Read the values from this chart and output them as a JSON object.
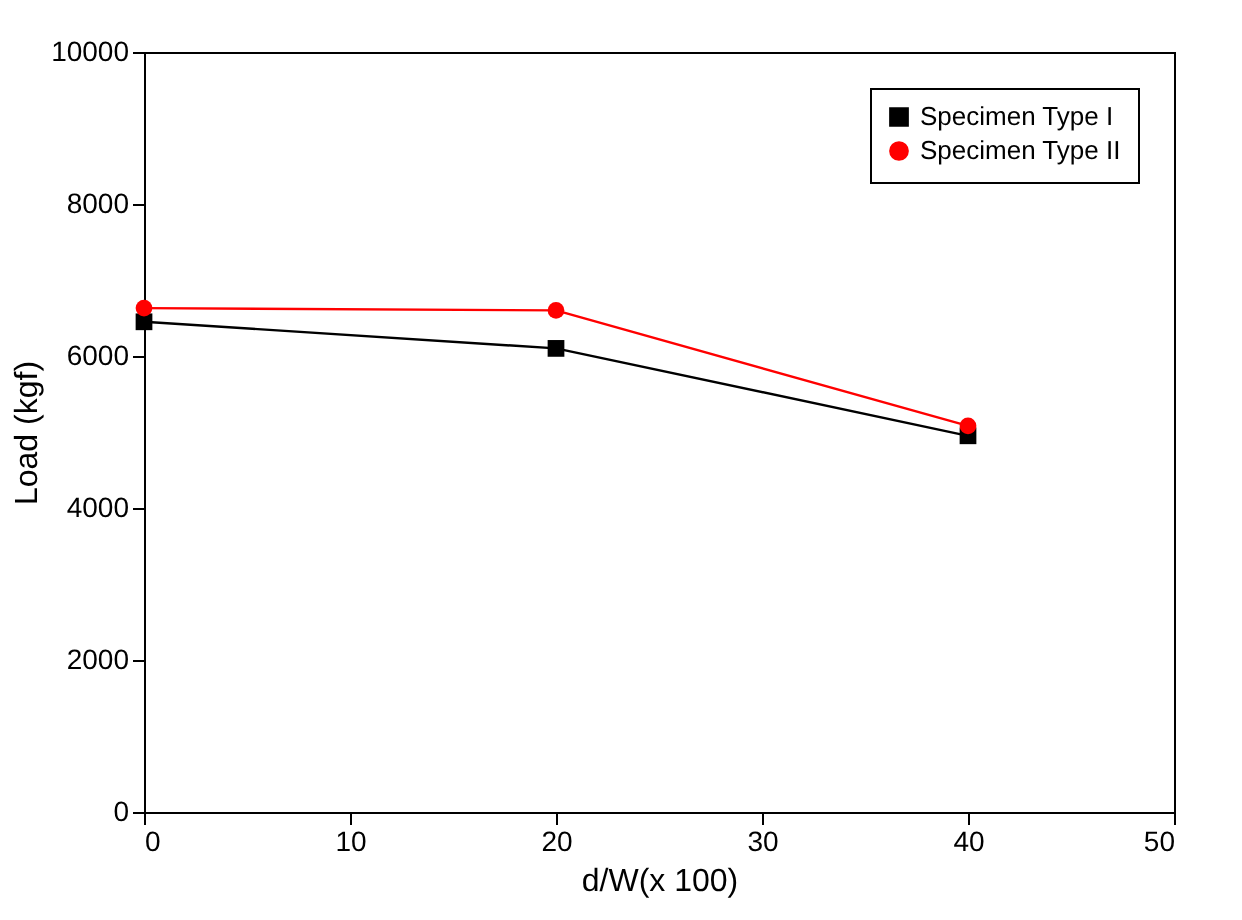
{
  "chart_data": {
    "type": "line",
    "xlabel": "d/W(x 100)",
    "ylabel": "Load (kgf)",
    "x": [
      0,
      20,
      40
    ],
    "series": [
      {
        "name": "Specimen Type I",
        "color": "#000000",
        "marker": "square",
        "values": [
          6450,
          6100,
          4950
        ]
      },
      {
        "name": "Specimen Type II",
        "color": "#ff0000",
        "marker": "circle",
        "values": [
          6630,
          6600,
          5080
        ]
      }
    ],
    "xlim": [
      0,
      50
    ],
    "xticks": [
      0,
      10,
      20,
      30,
      40,
      50
    ],
    "ylim": [
      0,
      10000
    ],
    "yticks": [
      0,
      2000,
      4000,
      6000,
      8000,
      10000
    ],
    "grid": false,
    "legend": "top right",
    "line_style": "solid"
  }
}
